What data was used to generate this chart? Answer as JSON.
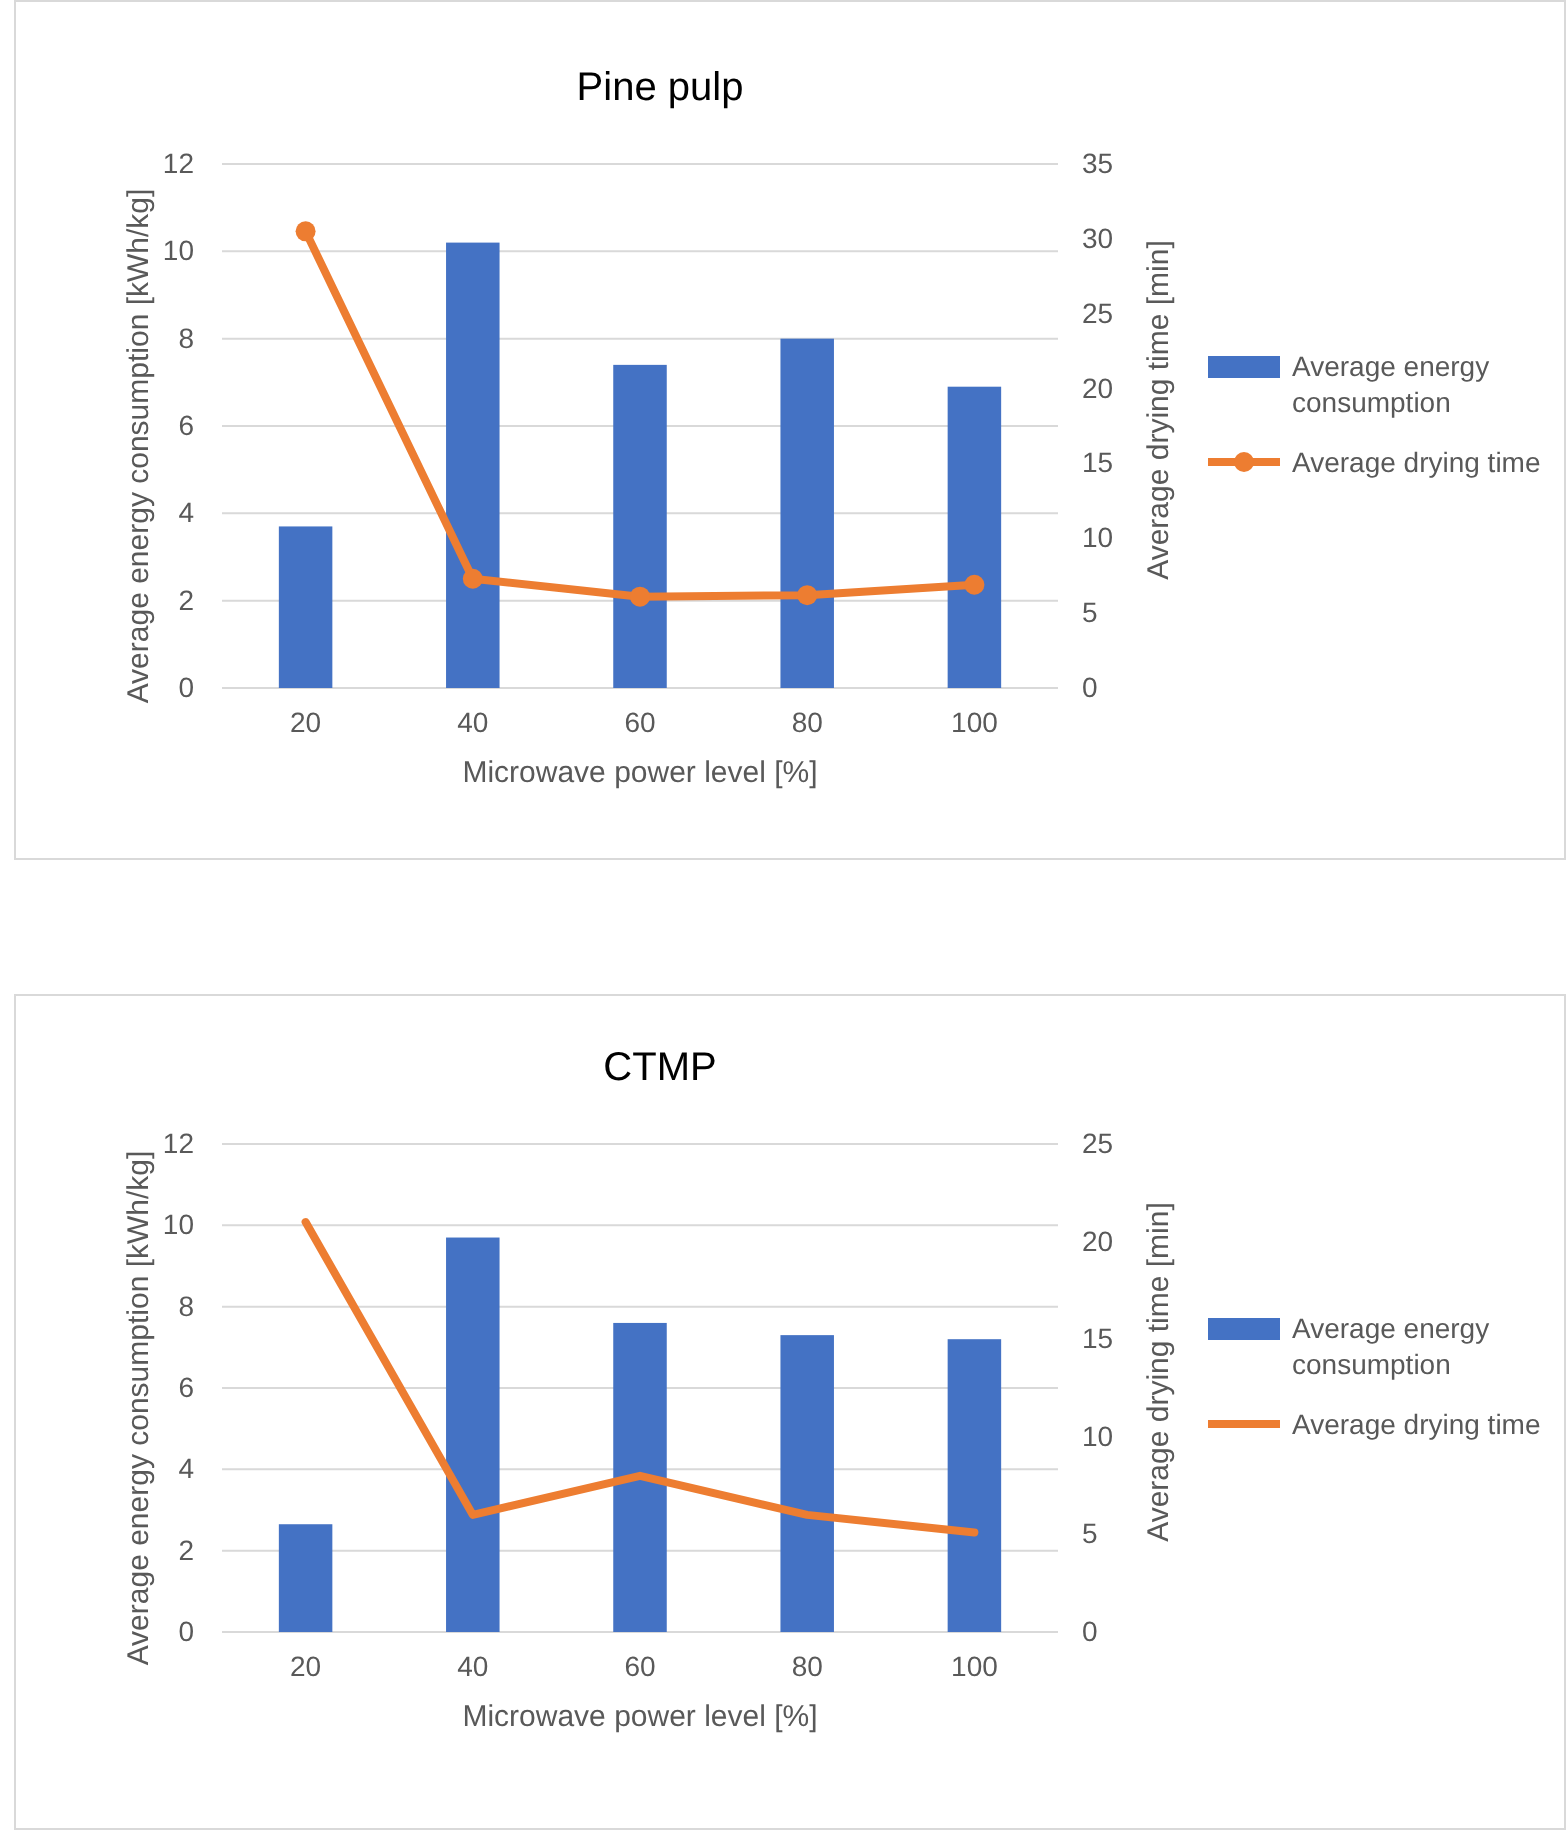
{
  "chart_data": [
    {
      "type": "bar",
      "title": "Pine pulp",
      "xlabel": "Microwave power level [%]",
      "ylabel": "Average energy consumption [kWh/kg]",
      "y2label": "Average drying time [min]",
      "categories": [
        "20",
        "40",
        "60",
        "80",
        "100"
      ],
      "series": [
        {
          "name": "Average energy consumption",
          "color": "#4472c4",
          "values": [
            3.7,
            10.2,
            7.4,
            8.0,
            6.9
          ]
        },
        {
          "name": "Average drying time",
          "type": "line",
          "axis": "y2",
          "color": "#ed7d31",
          "marker": "circle",
          "values": [
            30.5,
            7.3,
            6.1,
            6.2,
            6.9
          ]
        }
      ],
      "ylim": [
        0,
        12
      ],
      "yticks": [
        0,
        2,
        4,
        6,
        8,
        10,
        12
      ],
      "y2lim": [
        0,
        35
      ],
      "y2ticks": [
        0,
        5,
        10,
        15,
        20,
        25,
        30,
        35
      ],
      "grid": "y",
      "legend": "right"
    },
    {
      "type": "bar",
      "title": "CTMP",
      "xlabel": "Microwave power level [%]",
      "ylabel": "Average energy consumption [kWh/kg]",
      "y2label": "Average drying time [min]",
      "categories": [
        "20",
        "40",
        "60",
        "80",
        "100"
      ],
      "series": [
        {
          "name": "Average energy consumption",
          "color": "#4472c4",
          "values": [
            2.65,
            9.7,
            7.6,
            7.3,
            7.2
          ]
        },
        {
          "name": "Average drying time",
          "type": "line",
          "axis": "y2",
          "color": "#ed7d31",
          "values": [
            21,
            6.0,
            8.0,
            6.0,
            5.1
          ]
        }
      ],
      "ylim": [
        0,
        12
      ],
      "yticks": [
        0,
        2,
        4,
        6,
        8,
        10,
        12
      ],
      "y2lim": [
        0,
        25
      ],
      "y2ticks": [
        0,
        5,
        10,
        15,
        20,
        25
      ],
      "grid": "y",
      "legend": "right"
    }
  ]
}
